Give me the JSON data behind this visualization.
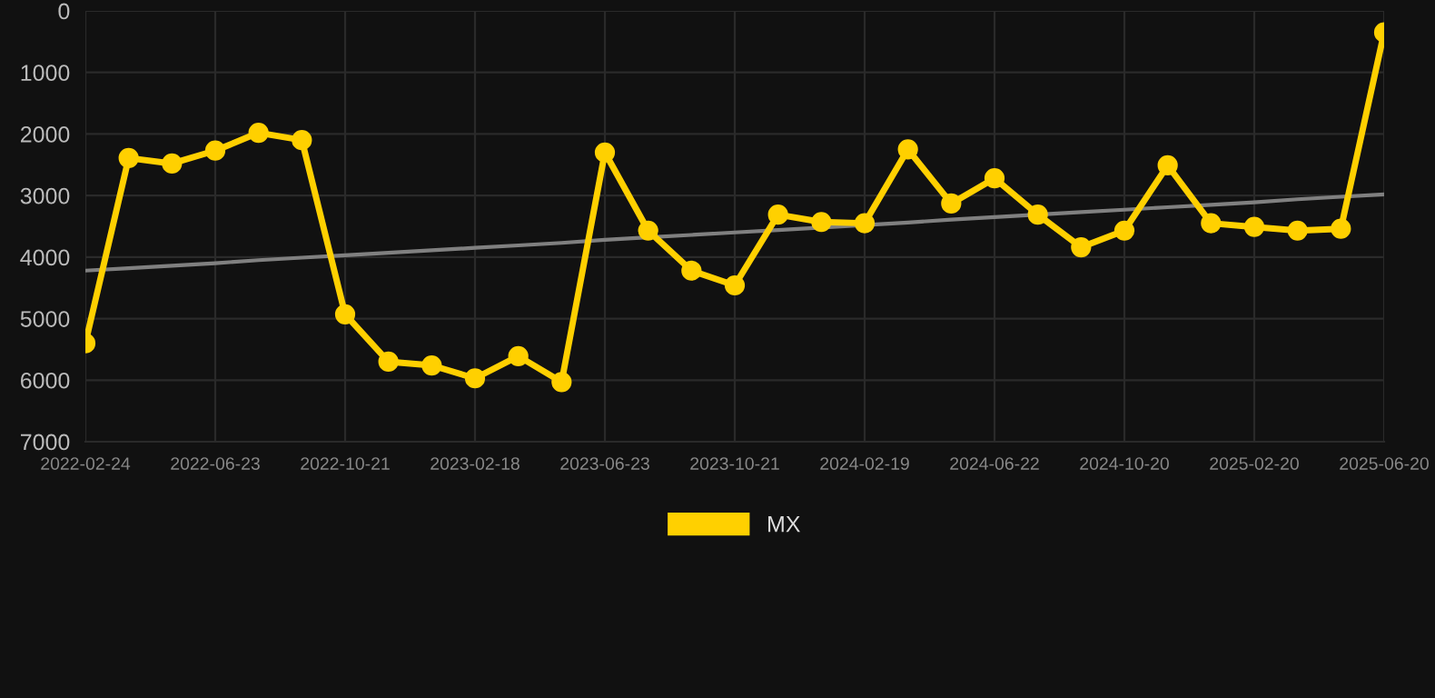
{
  "chart_data": {
    "type": "line",
    "categories": [
      "2022-02-24",
      null,
      null,
      "2022-06-23",
      null,
      null,
      "2022-10-21",
      null,
      null,
      "2023-02-18",
      null,
      null,
      "2023-06-23",
      null,
      null,
      "2023-10-21",
      null,
      null,
      "2024-02-19",
      null,
      null,
      "2024-06-22",
      null,
      null,
      "2024-10-20",
      null,
      null,
      "2025-02-20",
      null,
      null,
      "2025-06-20"
    ],
    "series": [
      {
        "name": "MX",
        "color": "#ffd000",
        "marker": "circle",
        "values": [
          5400,
          2390,
          2480,
          2270,
          1980,
          2100,
          4930,
          5700,
          5760,
          5970,
          5610,
          6030,
          2300,
          3570,
          4220,
          4460,
          3310,
          3430,
          3450,
          2250,
          3130,
          2720,
          3310,
          3840,
          3570,
          2510,
          3450,
          3510,
          3570,
          3540,
          350
        ]
      },
      {
        "type": "line",
        "color": "#808080",
        "marker": "none",
        "values": [
          4220,
          4180,
          4140,
          4100,
          4050,
          4010,
          3970,
          3930,
          3890,
          3850,
          3810,
          3770,
          3720,
          3680,
          3640,
          3600,
          3560,
          3520,
          3480,
          3440,
          3390,
          3350,
          3310,
          3270,
          3230,
          3190,
          3150,
          3110,
          3060,
          3020,
          2980
        ]
      }
    ],
    "ylim": [
      7000,
      0
    ],
    "yticks": [
      0,
      1000,
      2000,
      3000,
      4000,
      5000,
      6000,
      7000
    ],
    "grid": true,
    "legend": "bottom"
  }
}
